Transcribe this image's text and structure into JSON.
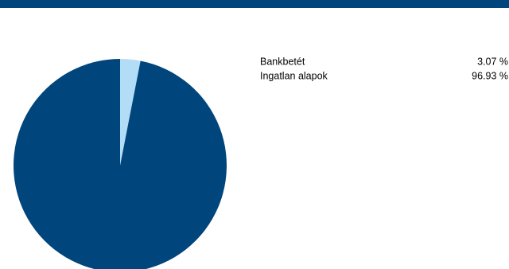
{
  "chart_data": {
    "type": "pie",
    "categories": [
      "Bankbetét",
      "Ingatlan alapok"
    ],
    "values": [
      3.07,
      96.93
    ],
    "value_labels": [
      "3.07 %",
      "96.93 %"
    ],
    "colors": [
      "#b3dcf7",
      "#00457c"
    ]
  }
}
